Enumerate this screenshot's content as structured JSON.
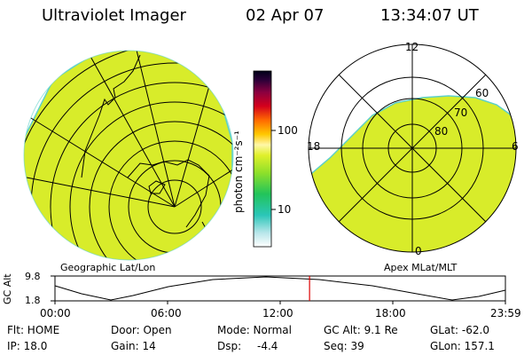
{
  "header": {
    "title": "Ultraviolet Imager",
    "date": "02 Apr 07",
    "time": "13:34:07 UT"
  },
  "colorbar": {
    "unit_label": "photon cm⁻²s⁻¹",
    "ticks": [
      "100",
      "10"
    ]
  },
  "left_panel": {
    "label": "Geographic Lat/Lon"
  },
  "right_panel": {
    "label": "Apex MLat/MLT",
    "mlt_labels": {
      "top": "12",
      "left": "18",
      "right": "6",
      "bottom": "0"
    },
    "lat_labels": [
      "60",
      "70",
      "80"
    ]
  },
  "altitude_plot": {
    "ylabel": "GC Alt",
    "yticks": [
      "9.8",
      "1.8"
    ],
    "xticks": [
      "00:00",
      "06:00",
      "12:00",
      "18:00",
      "23:59"
    ],
    "current_time_fraction": 0.5652,
    "marker_color": "#dd0000"
  },
  "status": {
    "row1": {
      "filter": "Flt: HOME",
      "door": "Door: Open",
      "mode": "Mode: Normal",
      "gc_alt": "GC Alt: 9.1 Re",
      "glat": "GLat: -62.0"
    },
    "row2": {
      "ip": "IP: 18.0",
      "gain": "Gain: 14",
      "dsp_label": "Dsp:",
      "dsp_value": "-4.4",
      "seq": "Seq: 39",
      "glon": "GLon: 157.1"
    }
  },
  "colors": {
    "aurora_fill": "#d8ec2a",
    "aurora_edge": "#5ed0c8"
  }
}
